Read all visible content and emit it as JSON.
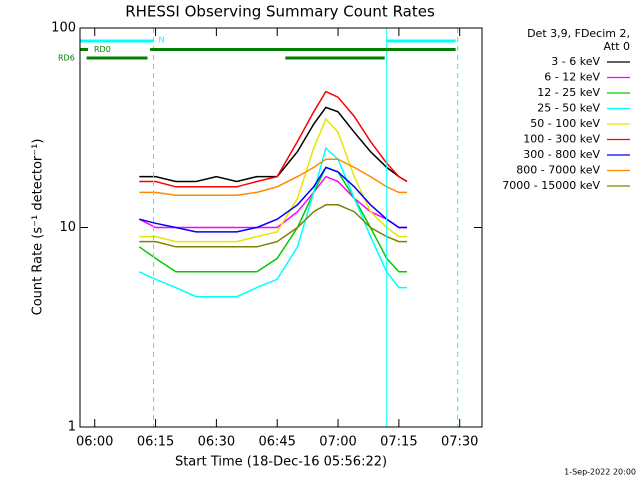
{
  "chart_data": {
    "type": "line",
    "title": "RHESSI Observing Summary Count Rates",
    "x_label": "Start Time (18-Dec-16 05:56:22)",
    "y_label": "Count Rate (s⁻¹ detector⁻¹)",
    "legend_title": [
      "Det 3,9, FDecim 2,",
      "Att 0"
    ],
    "footer": "1-Sep-2022 20:00",
    "log_y": true,
    "xlim": [
      "05:56:22",
      "07:35:30"
    ],
    "xticks": [
      "06:00",
      "06:15",
      "06:30",
      "06:45",
      "07:00",
      "07:15",
      "07:30"
    ],
    "ylim": [
      1,
      100
    ],
    "yticks": [
      1,
      10,
      100
    ],
    "x": [
      "06:11",
      "06:15",
      "06:20",
      "06:25",
      "06:30",
      "06:35",
      "06:40",
      "06:45",
      "06:50",
      "06:54",
      "06:57",
      "07:00",
      "07:04",
      "07:08",
      "07:12",
      "07:15",
      "07:17"
    ],
    "series": [
      {
        "name": "3 - 6 keV",
        "color": "#000000",
        "values": [
          18,
          18,
          17,
          17,
          18,
          17,
          18,
          18,
          24,
          33,
          40,
          38,
          30,
          24,
          20,
          18,
          17
        ]
      },
      {
        "name": "6 - 12 keV",
        "color": "#ff00ff",
        "values": [
          11,
          10,
          10,
          10,
          10,
          10,
          10,
          10,
          12,
          15,
          18,
          17,
          14,
          12,
          11,
          10,
          10
        ]
      },
      {
        "name": "12 - 25 keV",
        "color": "#00cc00",
        "values": [
          8,
          7,
          6,
          6,
          6,
          6,
          6,
          7,
          10,
          15,
          20,
          19,
          14,
          10,
          7,
          6,
          6
        ]
      },
      {
        "name": "25 - 50 keV",
        "color": "#00ffff",
        "values": [
          6,
          5.5,
          5,
          4.5,
          4.5,
          4.5,
          5,
          5.5,
          8,
          15,
          25,
          22,
          14,
          9,
          6,
          5,
          5
        ]
      },
      {
        "name": "50 - 100 keV",
        "color": "#e6e600",
        "values": [
          9,
          9,
          8.5,
          8.5,
          8.5,
          8.5,
          9,
          9.5,
          14,
          25,
          35,
          30,
          18,
          12,
          10,
          9,
          9
        ]
      },
      {
        "name": "100 - 300 keV",
        "color": "#ff0000",
        "values": [
          17,
          17,
          16,
          16,
          16,
          16,
          17,
          18,
          27,
          38,
          48,
          45,
          36,
          27,
          21,
          18,
          17
        ]
      },
      {
        "name": "300 - 800 keV",
        "color": "#0000ff",
        "values": [
          11,
          10.5,
          10,
          9.5,
          9.5,
          9.5,
          10,
          11,
          13,
          16,
          20,
          19,
          16,
          13,
          11,
          10,
          10
        ]
      },
      {
        "name": "800 - 7000 keV",
        "color": "#ff8800",
        "values": [
          15,
          15,
          14.5,
          14.5,
          14.5,
          14.5,
          15,
          16,
          18,
          20,
          22,
          22,
          20,
          18,
          16,
          15,
          15
        ]
      },
      {
        "name": "7000 - 15000 keV",
        "color": "#808000",
        "values": [
          8.5,
          8.5,
          8,
          8,
          8,
          8,
          8,
          8.5,
          10,
          12,
          13,
          13,
          12,
          10,
          9,
          8.5,
          8.5
        ]
      }
    ],
    "flag_bars": [
      {
        "label": "N",
        "color": "#00ffff",
        "row": 0,
        "segments": [
          [
            "05:56:22",
            "06:14:30"
          ],
          [
            "07:12:00",
            "07:29:00"
          ]
        ]
      },
      {
        "label": "RD0",
        "color": "#008000",
        "row": 1,
        "segments": [
          [
            "05:56:22",
            "05:58:20"
          ],
          [
            "06:13:40",
            "07:29:00"
          ]
        ]
      },
      {
        "label": "RD6",
        "color": "#008000",
        "row": 2,
        "segments": [
          [
            "05:58:00",
            "06:13:00"
          ],
          [
            "06:47:00",
            "07:11:30"
          ]
        ]
      }
    ],
    "dashed_lines": [
      "06:14:30",
      "07:29:30"
    ],
    "solid_lines": [
      "07:12:00"
    ],
    "line_color": "#00ffff"
  }
}
